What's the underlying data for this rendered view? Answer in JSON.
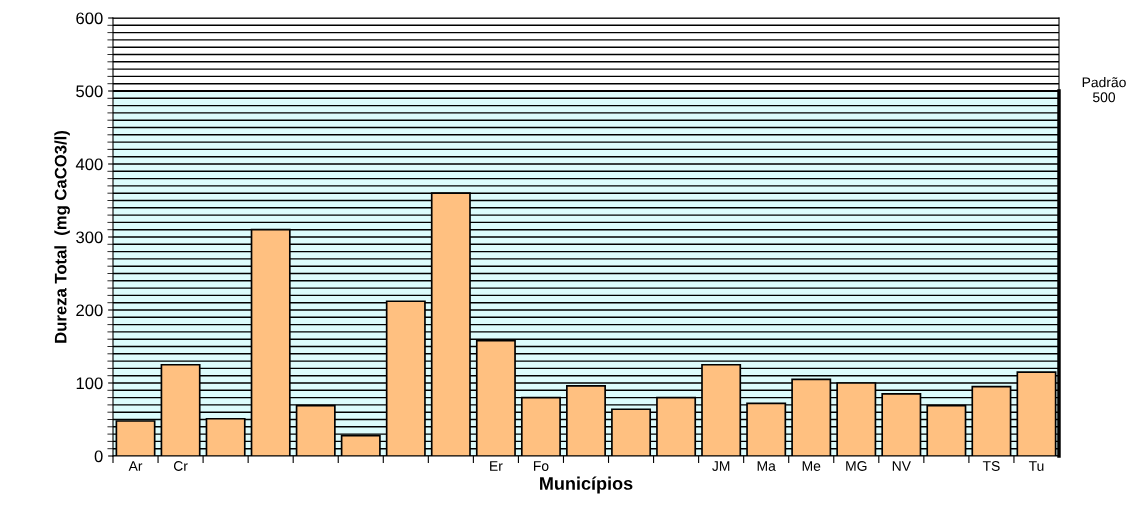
{
  "chart_data": {
    "type": "bar",
    "xlabel": "Municípios",
    "ylabel": "Dureza Total  (mg CaCO3/l)",
    "categories": [
      "Ar",
      "Cr",
      null,
      null,
      null,
      null,
      null,
      null,
      "Er",
      "Fo",
      null,
      null,
      null,
      "JM",
      "Ma",
      "Me",
      "MG",
      "NV",
      null,
      "TS",
      "Tu"
    ],
    "values": [
      48,
      125,
      51,
      310,
      69,
      28,
      212,
      360,
      158,
      80,
      96,
      64,
      80,
      125,
      72,
      105,
      100,
      85,
      69,
      95,
      115
    ],
    "color": "#ffc080",
    "ylim": [
      0,
      600
    ],
    "yticks": [
      0,
      100,
      200,
      300,
      400,
      500,
      600
    ],
    "grid": "y",
    "bands": [
      {
        "axis": "y",
        "from": 0,
        "to": 500,
        "label": null,
        "color": "#dcfcfc"
      }
    ],
    "ref_lines": [
      {
        "axis": "y",
        "value": 500,
        "label": "Padrão\n500",
        "color": "#000000"
      }
    ]
  }
}
